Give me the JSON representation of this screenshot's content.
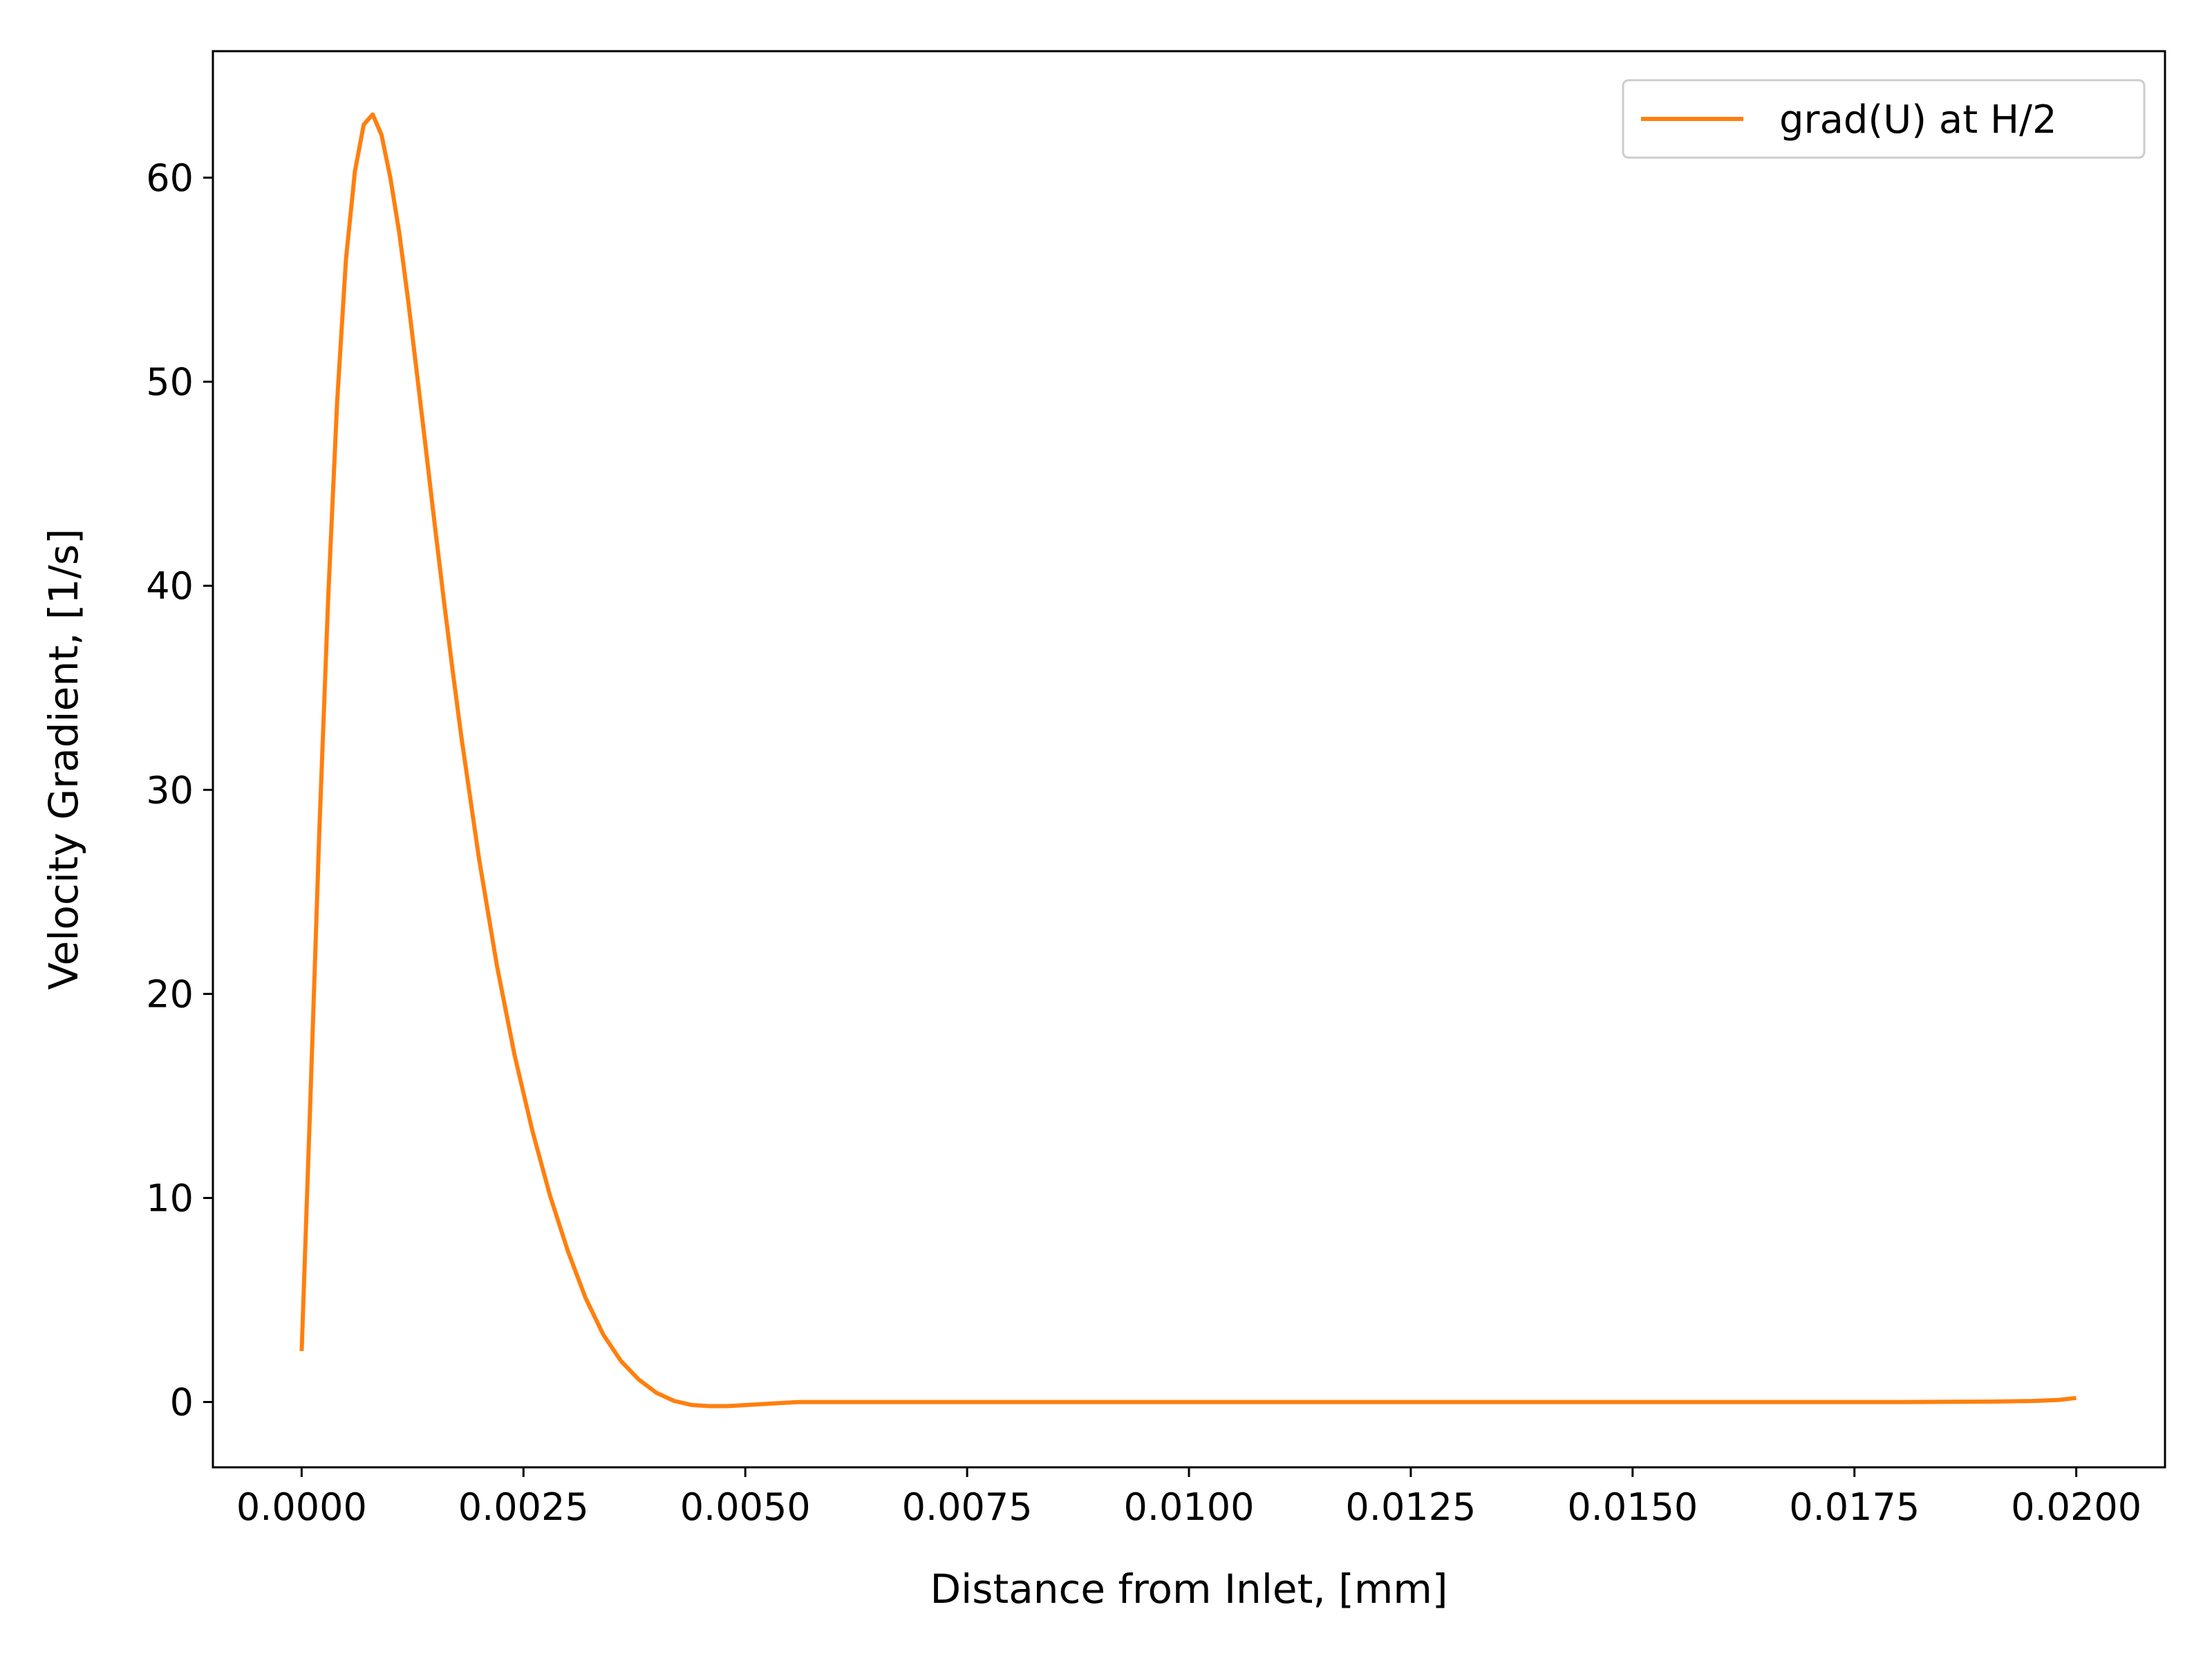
{
  "chart_data": {
    "type": "line",
    "title": "",
    "xlabel": "Distance from Inlet, [mm]",
    "ylabel": "Velocity Gradient, [1/s]",
    "xlim": [
      -0.001,
      0.021
    ],
    "ylim": [
      -3.2,
      66.2
    ],
    "xticks": [
      0.0,
      0.0025,
      0.005,
      0.0075,
      0.01,
      0.0125,
      0.015,
      0.0175,
      0.02
    ],
    "xtick_labels": [
      "0.0000",
      "0.0025",
      "0.0050",
      "0.0075",
      "0.0100",
      "0.0125",
      "0.0150",
      "0.0175",
      "0.0200"
    ],
    "yticks": [
      0,
      10,
      20,
      30,
      40,
      50,
      60
    ],
    "ytick_labels": [
      "0",
      "10",
      "20",
      "30",
      "40",
      "50",
      "60"
    ],
    "grid": false,
    "legend": {
      "placement": "top-right"
    },
    "colors": {
      "series": "#ff7f0e",
      "axes": "#000000",
      "legend_border": "#cccccc",
      "background": "#ffffff"
    },
    "series": [
      {
        "name": "grad(U) at H/2",
        "x": [
          0.0,
          0.0001,
          0.0002,
          0.0003,
          0.0004,
          0.0005,
          0.0006,
          0.0007,
          0.0008,
          0.0009,
          0.001,
          0.0011,
          0.0012,
          0.0013,
          0.0014,
          0.0015,
          0.0016,
          0.0017,
          0.0018,
          0.002,
          0.0022,
          0.0024,
          0.0026,
          0.0028,
          0.003,
          0.0032,
          0.0034,
          0.0036,
          0.0038,
          0.004,
          0.0042,
          0.0044,
          0.0046,
          0.0048,
          0.005,
          0.0052,
          0.0054,
          0.0056,
          0.006,
          0.0065,
          0.007,
          0.008,
          0.009,
          0.01,
          0.011,
          0.012,
          0.013,
          0.014,
          0.015,
          0.016,
          0.017,
          0.018,
          0.019,
          0.0195,
          0.0198,
          0.02
        ],
        "y": [
          2.5,
          15.0,
          28.0,
          39.5,
          49.0,
          56.0,
          60.3,
          62.6,
          63.1,
          62.1,
          60.0,
          57.3,
          54.0,
          50.4,
          46.7,
          43.0,
          39.4,
          35.9,
          32.6,
          26.6,
          21.4,
          17.0,
          13.3,
          10.1,
          7.4,
          5.1,
          3.3,
          2.0,
          1.1,
          0.45,
          0.05,
          -0.15,
          -0.2,
          -0.2,
          -0.15,
          -0.1,
          -0.05,
          0.0,
          0.0,
          0.0,
          0.0,
          0.0,
          0.0,
          0.0,
          0.0,
          0.0,
          0.0,
          0.0,
          0.0,
          0.0,
          0.0,
          0.0,
          0.02,
          0.05,
          0.1,
          0.2
        ]
      }
    ]
  }
}
